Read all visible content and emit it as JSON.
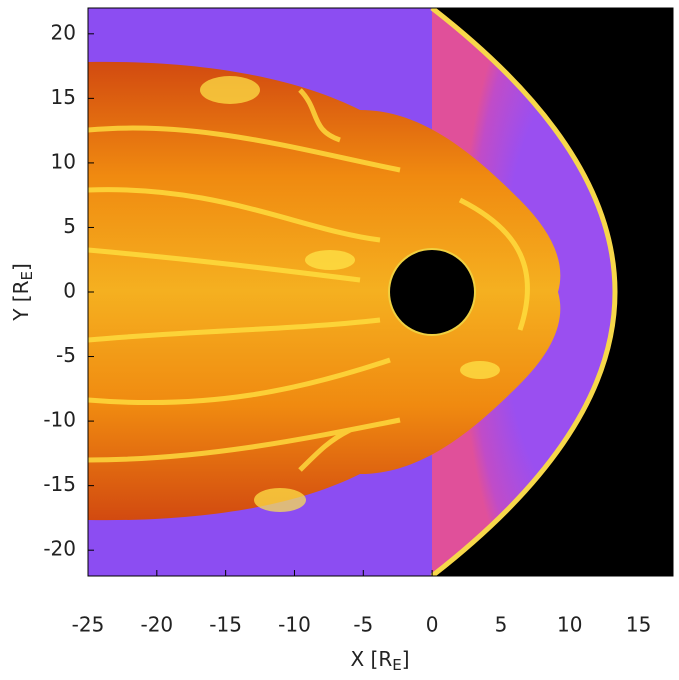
{
  "chart_data": {
    "type": "image",
    "xlabel": {
      "main": "X [R",
      "sub": "E",
      "end": "]"
    },
    "ylabel": {
      "main": "Y [R",
      "sub": "E",
      "end": "]"
    },
    "xlim": [
      -25,
      17.5
    ],
    "ylim": [
      -22,
      22
    ],
    "xticks": [
      -25,
      -20,
      -15,
      -10,
      -5,
      0,
      5,
      10,
      15
    ],
    "yticks": [
      -20,
      -15,
      -10,
      -5,
      0,
      5,
      10,
      15,
      20
    ]
  }
}
